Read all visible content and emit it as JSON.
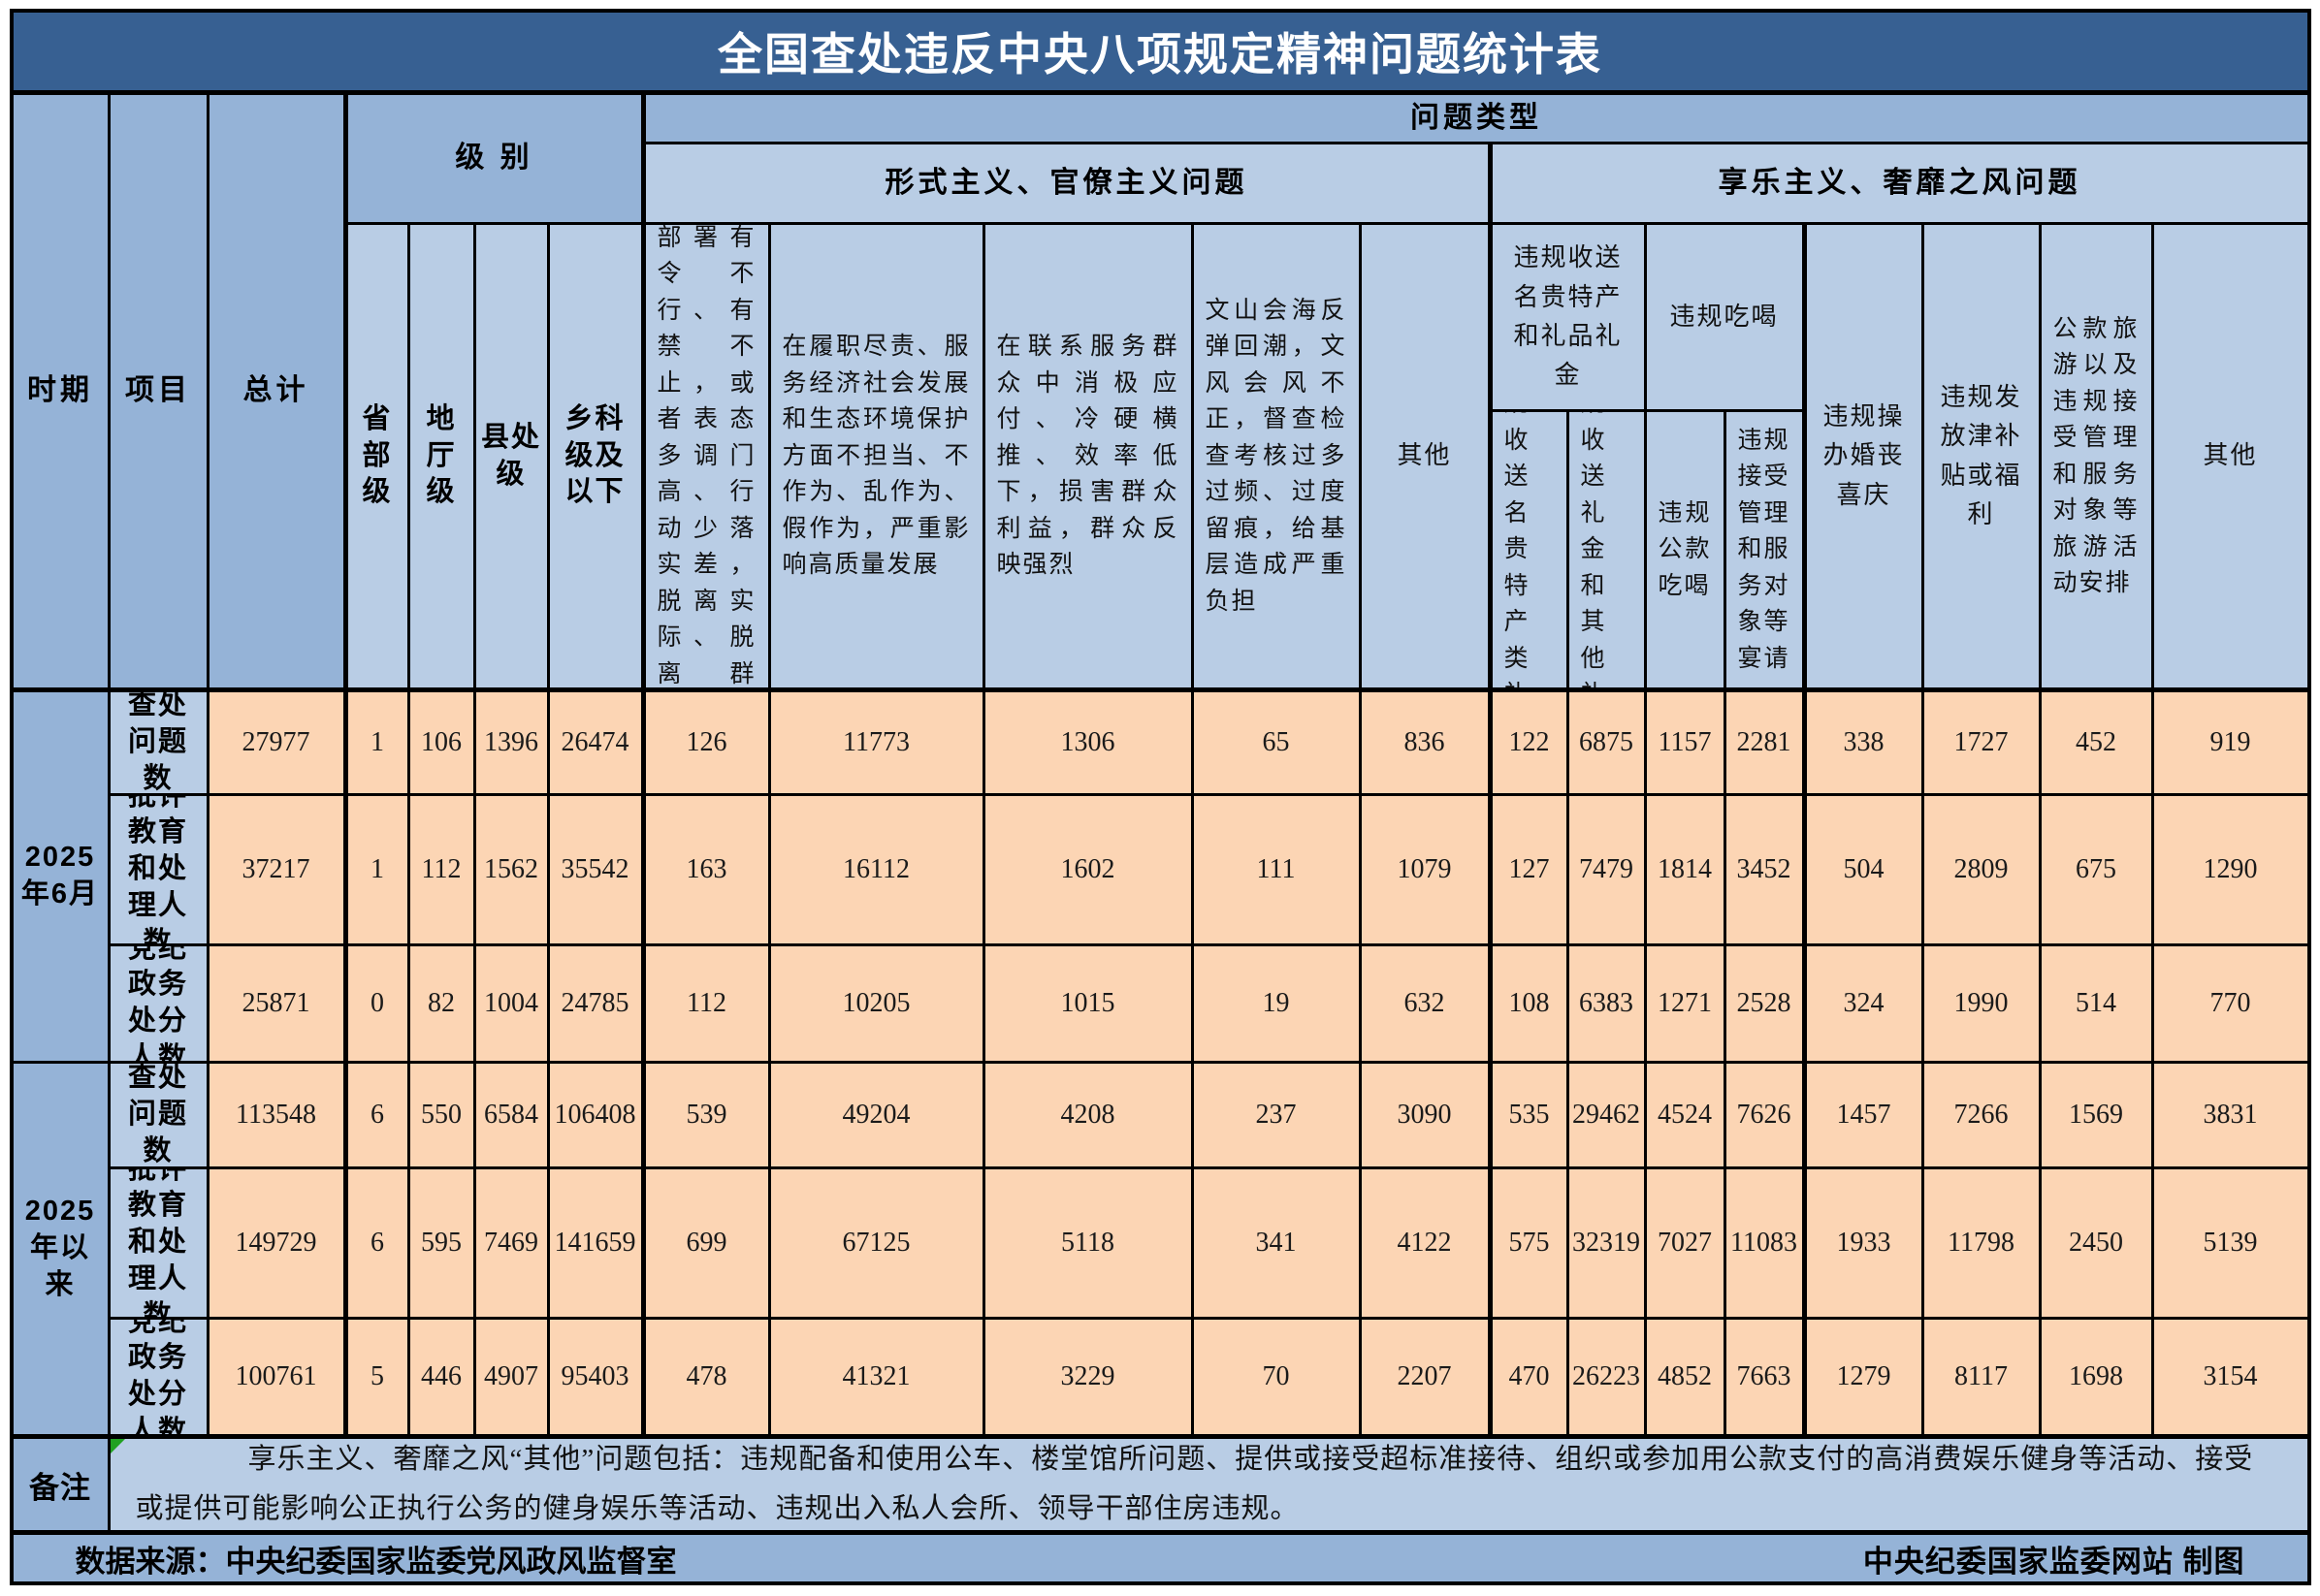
{
  "title": "全国查处违反中央八项规定精神问题统计表",
  "header": {
    "period": "时期",
    "item": "项目",
    "total": "总计",
    "level_group": "级 别",
    "problem_type": "问题类型",
    "levels": [
      "省部级",
      "地厅级",
      "县处级",
      "乡科级及以下"
    ],
    "formalism_group": "形式主义、官僚主义问题",
    "hedonism_group": "享乐主义、奢靡之风问题",
    "formalism_cols": [
      "贯彻党中央重大决策部署有令不行、有禁不止，或者表态多调门高、行动少落实差，脱离实际、脱离群众，造成严重后果",
      "在履职尽责、服务经济社会发展和生态环境保护方面不担当、不作为、乱作为、假作为，严重影响高质量发展",
      "在联系服务群众中消极应付、冷硬横推、效率低下，损害群众利益，群众反映强烈",
      "文山会海反弹回潮，文风会风不正，督查检查考核过多过频、过度留痕，给基层造成严重负担",
      "其他"
    ],
    "gift_group": "违规收送名贵特产和礼品礼金",
    "dining_group": "违规吃喝",
    "hedonism_sub_cols": [
      "违规收送名贵特产类礼品",
      "违规收送礼金和其他礼品",
      "违规公款吃喝",
      "违规接受管理和服务对象等宴请"
    ],
    "hedonism_full_cols": [
      "违规操办婚丧喜庆",
      "违规发放津补贴或福利",
      "公款旅游以及违规接受管理和服务对象等旅游活动安排",
      "其他"
    ]
  },
  "periods": [
    {
      "label": "2025年6月",
      "rows": [
        {
          "label": "查处问题数",
          "values": [
            27977,
            1,
            106,
            1396,
            26474,
            126,
            11773,
            1306,
            65,
            836,
            122,
            6875,
            1157,
            2281,
            338,
            1727,
            452,
            919
          ]
        },
        {
          "label": "批评教育和处理人数",
          "values": [
            37217,
            1,
            112,
            1562,
            35542,
            163,
            16112,
            1602,
            111,
            1079,
            127,
            7479,
            1814,
            3452,
            504,
            2809,
            675,
            1290
          ]
        },
        {
          "label": "党纪政务处分人数",
          "values": [
            25871,
            0,
            82,
            1004,
            24785,
            112,
            10205,
            1015,
            19,
            632,
            108,
            6383,
            1271,
            2528,
            324,
            1990,
            514,
            770
          ]
        }
      ]
    },
    {
      "label": "2025年以来",
      "rows": [
        {
          "label": "查处问题数",
          "values": [
            113548,
            6,
            550,
            6584,
            106408,
            539,
            49204,
            4208,
            237,
            3090,
            535,
            29462,
            4524,
            7626,
            1457,
            7266,
            1569,
            3831
          ]
        },
        {
          "label": "批评教育和处理人数",
          "values": [
            149729,
            6,
            595,
            7469,
            141659,
            699,
            67125,
            5118,
            341,
            4122,
            575,
            32319,
            7027,
            11083,
            1933,
            11798,
            2450,
            5139
          ]
        },
        {
          "label": "党纪政务处分人数",
          "values": [
            100761,
            5,
            446,
            4907,
            95403,
            478,
            41321,
            3229,
            70,
            2207,
            470,
            26223,
            4852,
            7663,
            1279,
            8117,
            1698,
            3154
          ]
        }
      ]
    }
  ],
  "notes": {
    "label": "备注",
    "text": "享乐主义、奢靡之风“其他”问题包括：违规配备和使用公车、楼堂馆所问题、提供或接受超标准接待、组织或参加用公款支付的高消费娱乐健身等活动、接受或提供可能影响公正执行公务的健身娱乐等活动、违规出入私人会所、领导干部住房违规。"
  },
  "footer": {
    "source": "数据来源：中央纪委国家监委党风政风监督室",
    "credit": "中央纪委国家监委网站 制图"
  },
  "colors": {
    "title_bg": "#376092",
    "header_medium": "#95B3D7",
    "header_light": "#B9CDE5",
    "data_bg": "#FCD5B4",
    "border": "#000000",
    "note_marker": "#21A121"
  }
}
